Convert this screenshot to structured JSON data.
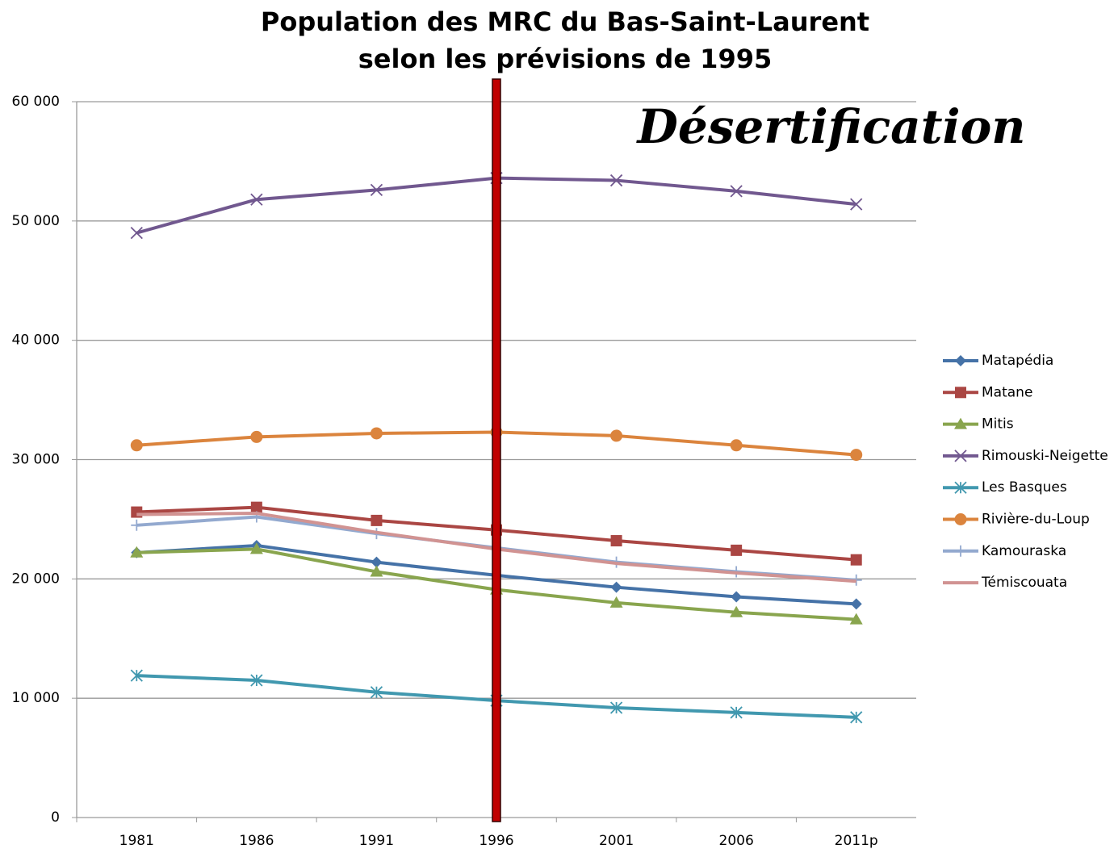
{
  "chart_data": {
    "type": "line",
    "title": [
      "Population des MRC du Bas-Saint-Laurent",
      "selon les prévisions de 1995"
    ],
    "annotation": "Désertification",
    "annotation_color": "#e8141b",
    "highlight_category": 3,
    "highlight_color": "#c00000",
    "categories": [
      "1981",
      "1986",
      "1991",
      "1996",
      "2001",
      "2006",
      "2011p"
    ],
    "ylim": [
      0,
      60000
    ],
    "yticks": [
      0,
      {
        "value": 10000,
        "label": "10 000"
      },
      {
        "value": 20000,
        "label": "20 000"
      },
      {
        "value": 30000,
        "label": "30 000"
      },
      {
        "value": 40000,
        "label": "40 000"
      },
      {
        "value": 50000,
        "label": "50 000"
      },
      {
        "value": 60000,
        "label": "60 000"
      }
    ],
    "grid": true,
    "legend": "right",
    "series": [
      {
        "name": "Matapédia",
        "color": "#4572a7",
        "marker": "diamond",
        "values": [
          22200,
          22800,
          21400,
          20300,
          19300,
          18500,
          17900
        ]
      },
      {
        "name": "Matane",
        "color": "#aa4643",
        "marker": "square",
        "values": [
          25600,
          26000,
          24900,
          24100,
          23200,
          22400,
          21600
        ]
      },
      {
        "name": "Mitis",
        "color": "#89a54e",
        "marker": "triangle",
        "values": [
          22200,
          22500,
          20600,
          19100,
          18000,
          17200,
          16600
        ]
      },
      {
        "name": "Rimouski-Neigette",
        "color": "#71588f",
        "marker": "x",
        "values": [
          49000,
          51800,
          52600,
          53600,
          53400,
          52500,
          51400
        ]
      },
      {
        "name": "Les Basques",
        "color": "#4198af",
        "marker": "star",
        "values": [
          11900,
          11500,
          10500,
          9800,
          9200,
          8800,
          8400
        ]
      },
      {
        "name": "Rivière-du-Loup",
        "color": "#db843d",
        "marker": "circle",
        "values": [
          31200,
          31900,
          32200,
          32300,
          32000,
          31200,
          30400
        ]
      },
      {
        "name": "Kamouraska",
        "color": "#93a9cf",
        "marker": "plus",
        "values": [
          24500,
          25200,
          23800,
          22600,
          21400,
          20600,
          19900
        ]
      },
      {
        "name": "Témiscouata",
        "color": "#d19392",
        "marker": "none",
        "values": [
          25400,
          25500,
          23900,
          22500,
          21300,
          20500,
          19800
        ]
      }
    ]
  }
}
